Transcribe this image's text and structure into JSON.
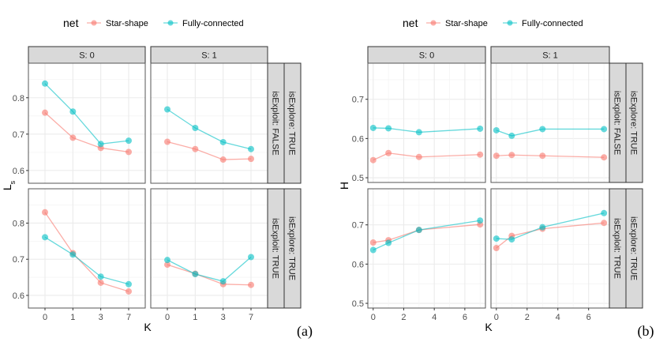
{
  "figure_labels": [
    "(a)",
    "(b)"
  ],
  "colors": {
    "Star-shape": "#F8766D",
    "Fully-connected": "#00BFC4",
    "strip_bg": "#D9D9D9",
    "strip_border": "#333333",
    "grid_major": "#EBEBEB",
    "panel_border": "#333333"
  },
  "chart_data": [
    {
      "type": "line",
      "label": "(a)",
      "legend": {
        "title": "net",
        "entries": [
          "Star-shape",
          "Fully-connected"
        ],
        "position": "top"
      },
      "xlabel": "K",
      "ylabel": "L",
      "ylabel_subscript": "s",
      "x_scale": "categorical",
      "x": [
        0,
        1,
        3,
        7
      ],
      "xticks": [
        "0",
        "1",
        "3",
        "7"
      ],
      "ylim": [
        0.565,
        0.895
      ],
      "yticks": [
        0.6,
        0.7,
        0.8
      ],
      "ytick_labels": [
        "0.6",
        "0.7",
        "0.8"
      ],
      "grid": true,
      "col_strips": [
        "S: 0",
        "S: 1"
      ],
      "row_strips_outer": [
        "isExplore: TRUE",
        "isExplore: TRUE"
      ],
      "row_strips_inner": [
        "isExploit: FALSE",
        "isExploit: TRUE"
      ],
      "panels": [
        {
          "row": 0,
          "col": 0,
          "series": [
            {
              "name": "Star-shape",
              "values": [
                0.759,
                0.69,
                0.662,
                0.651
              ]
            },
            {
              "name": "Fully-connected",
              "values": [
                0.839,
                0.762,
                0.673,
                0.682
              ]
            }
          ]
        },
        {
          "row": 0,
          "col": 1,
          "series": [
            {
              "name": "Star-shape",
              "values": [
                0.679,
                0.659,
                0.63,
                0.632
              ]
            },
            {
              "name": "Fully-connected",
              "values": [
                0.768,
                0.717,
                0.678,
                0.659
              ]
            }
          ]
        },
        {
          "row": 1,
          "col": 0,
          "series": [
            {
              "name": "Star-shape",
              "values": [
                0.83,
                0.717,
                0.635,
                0.611
              ]
            },
            {
              "name": "Fully-connected",
              "values": [
                0.761,
                0.713,
                0.652,
                0.631
              ]
            }
          ]
        },
        {
          "row": 1,
          "col": 1,
          "series": [
            {
              "name": "Star-shape",
              "values": [
                0.685,
                0.66,
                0.631,
                0.629
              ]
            },
            {
              "name": "Fully-connected",
              "values": [
                0.698,
                0.659,
                0.639,
                0.706
              ]
            }
          ]
        }
      ]
    },
    {
      "type": "line",
      "label": "(b)",
      "legend": {
        "title": "net",
        "entries": [
          "Star-shape",
          "Fully-connected"
        ],
        "position": "top"
      },
      "xlabel": "K",
      "ylabel": "H",
      "ylabel_subscript": "",
      "x_scale": "continuous",
      "x": [
        0,
        1,
        3,
        7
      ],
      "xlim": [
        -0.35,
        7.35
      ],
      "xticks": [
        "0",
        "2",
        "4",
        "6"
      ],
      "xtick_values": [
        0,
        2,
        4,
        6
      ],
      "ylim": [
        0.488,
        0.792
      ],
      "yticks": [
        0.5,
        0.6,
        0.7
      ],
      "ytick_labels": [
        "0.5",
        "0.6",
        "0.7"
      ],
      "grid": true,
      "col_strips": [
        "S: 0",
        "S: 1"
      ],
      "row_strips_outer": [
        "isExplore: TRUE",
        "isExplore: TRUE"
      ],
      "row_strips_inner": [
        "isExploit: FALSE",
        "isExploit: TRUE"
      ],
      "panels": [
        {
          "row": 0,
          "col": 0,
          "series": [
            {
              "name": "Star-shape",
              "values": [
                0.545,
                0.563,
                0.553,
                0.559
              ]
            },
            {
              "name": "Fully-connected",
              "values": [
                0.627,
                0.626,
                0.616,
                0.625
              ]
            }
          ]
        },
        {
          "row": 0,
          "col": 1,
          "series": [
            {
              "name": "Star-shape",
              "values": [
                0.556,
                0.558,
                0.556,
                0.552
              ]
            },
            {
              "name": "Fully-connected",
              "values": [
                0.621,
                0.607,
                0.624,
                0.624
              ]
            }
          ]
        },
        {
          "row": 1,
          "col": 0,
          "series": [
            {
              "name": "Star-shape",
              "values": [
                0.655,
                0.661,
                0.687,
                0.701
              ]
            },
            {
              "name": "Fully-connected",
              "values": [
                0.636,
                0.654,
                0.687,
                0.711
              ]
            }
          ]
        },
        {
          "row": 1,
          "col": 1,
          "series": [
            {
              "name": "Star-shape",
              "values": [
                0.641,
                0.672,
                0.69,
                0.705
              ]
            },
            {
              "name": "Fully-connected",
              "values": [
                0.665,
                0.663,
                0.694,
                0.73
              ]
            }
          ]
        }
      ]
    }
  ]
}
